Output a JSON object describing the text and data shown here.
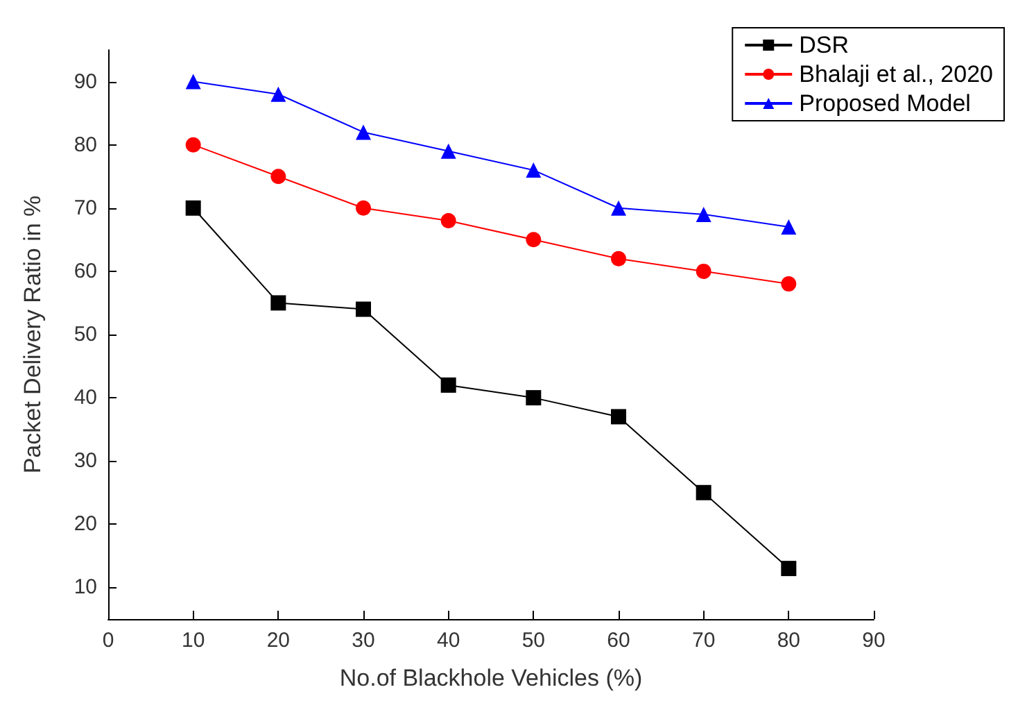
{
  "chart_data": {
    "type": "line",
    "xlabel": "No.of Blackhole Vehicles (%)",
    "ylabel": "Packet Delivery Ratio in %",
    "x": [
      10,
      20,
      30,
      40,
      50,
      60,
      70,
      80
    ],
    "series": [
      {
        "name": "DSR",
        "color": "#000000",
        "marker": "square",
        "values": [
          70,
          55,
          54,
          42,
          40,
          37,
          25,
          13
        ]
      },
      {
        "name": "Bhalaji et al., 2020",
        "color": "#ff0000",
        "marker": "circle",
        "values": [
          80,
          75,
          70,
          68,
          65,
          62,
          60,
          58
        ]
      },
      {
        "name": "Proposed Model",
        "color": "#0000ff",
        "marker": "triangle",
        "values": [
          90,
          88,
          82,
          79,
          76,
          70,
          69,
          67
        ]
      }
    ],
    "xlim": [
      0,
      90
    ],
    "xticks": [
      0,
      10,
      20,
      30,
      40,
      50,
      60,
      70,
      80,
      90
    ],
    "ylim": [
      5,
      95
    ],
    "yticks": [
      10,
      20,
      30,
      40,
      50,
      60,
      70,
      80,
      90
    ],
    "grid": false,
    "legend": "top right",
    "line_style": "solid"
  }
}
